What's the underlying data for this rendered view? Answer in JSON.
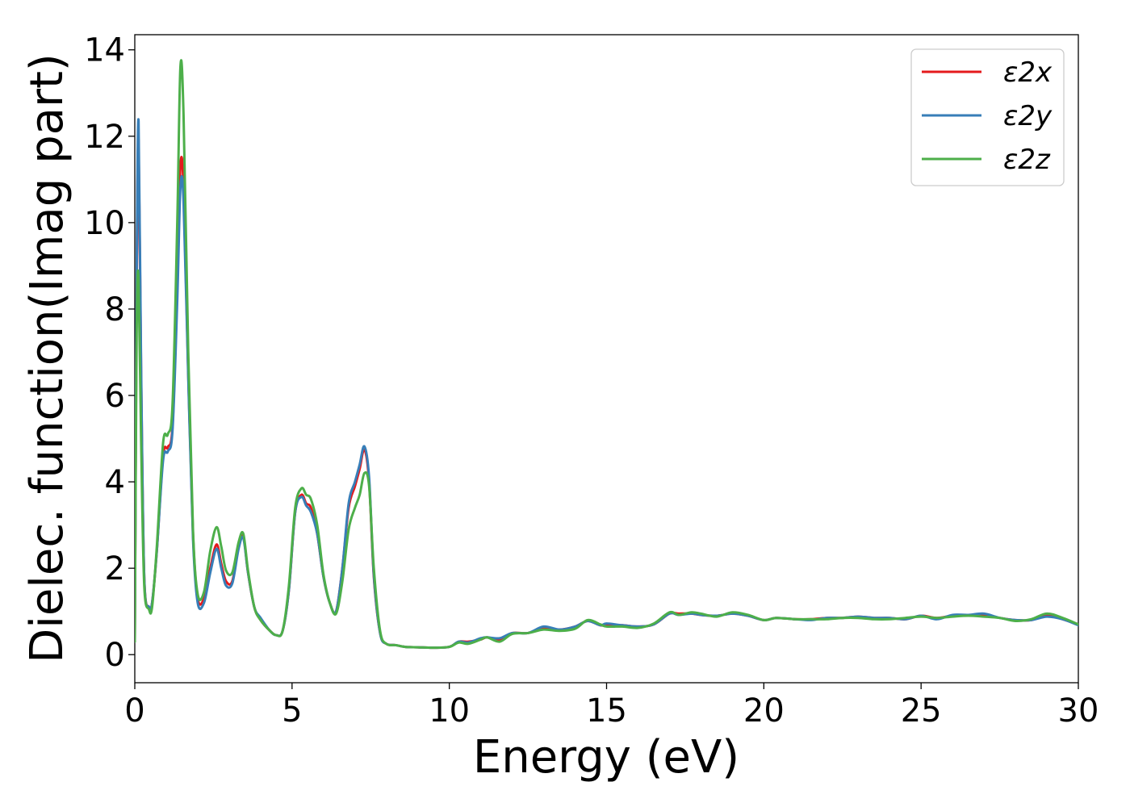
{
  "chart_data": {
    "type": "line",
    "xlabel": "Energy (eV)",
    "ylabel": "Dielec. function(Imag part)",
    "xlim": [
      0,
      30
    ],
    "ylim": [
      -0.65,
      14.35
    ],
    "xticks": [
      0,
      5,
      10,
      15,
      20,
      25,
      30
    ],
    "yticks": [
      0,
      2,
      4,
      6,
      8,
      10,
      12,
      14
    ],
    "xtick_labels": [
      "0",
      "5",
      "10",
      "15",
      "20",
      "25",
      "30"
    ],
    "ytick_labels": [
      "0",
      "2",
      "4",
      "6",
      "8",
      "10",
      "12",
      "14"
    ],
    "grid": false,
    "legend_position": "top-right",
    "series": [
      {
        "name": "ε2x",
        "color": "#e41a1c",
        "x": [
          0,
          0.06,
          0.12,
          0.2,
          0.3,
          0.45,
          0.55,
          0.7,
          0.9,
          1.05,
          1.2,
          1.35,
          1.45,
          1.55,
          1.7,
          1.85,
          2.0,
          2.2,
          2.4,
          2.6,
          2.75,
          2.9,
          3.1,
          3.3,
          3.45,
          3.6,
          3.8,
          4.0,
          4.3,
          4.5,
          4.7,
          4.9,
          5.1,
          5.3,
          5.45,
          5.6,
          5.8,
          6.0,
          6.2,
          6.4,
          6.6,
          6.8,
          7.0,
          7.15,
          7.3,
          7.45,
          7.6,
          7.8,
          8.0,
          8.3,
          8.6,
          9.0,
          9.5,
          10.0,
          10.3,
          10.6,
          11.0,
          11.2,
          11.6,
          12.0,
          12.5,
          13.0,
          13.5,
          14.0,
          14.4,
          14.8,
          15.0,
          15.5,
          16.0,
          16.5,
          17.0,
          17.3,
          17.7,
          18.0,
          18.5,
          19.0,
          19.5,
          20.0,
          20.4,
          21.0,
          21.5,
          22.0,
          22.5,
          23.0,
          23.5,
          24.0,
          24.5,
          25.0,
          25.5,
          26.0,
          26.5,
          27.0,
          27.5,
          28.0,
          28.5,
          29.0,
          29.5,
          30.0
        ],
        "values": [
          0.3,
          8.5,
          11.9,
          6.5,
          1.8,
          1.1,
          1.2,
          2.4,
          4.6,
          4.8,
          5.3,
          8.5,
          11.3,
          10.8,
          6.5,
          2.8,
          1.3,
          1.3,
          2.0,
          2.55,
          2.1,
          1.7,
          1.7,
          2.5,
          2.75,
          1.9,
          1.1,
          0.8,
          0.55,
          0.45,
          0.55,
          1.5,
          3.3,
          3.7,
          3.5,
          3.4,
          2.8,
          1.8,
          1.2,
          1.0,
          2.0,
          3.4,
          3.9,
          4.3,
          4.75,
          4.0,
          1.8,
          0.5,
          0.25,
          0.22,
          0.18,
          0.17,
          0.16,
          0.18,
          0.3,
          0.3,
          0.35,
          0.4,
          0.35,
          0.5,
          0.5,
          0.62,
          0.58,
          0.65,
          0.78,
          0.68,
          0.68,
          0.68,
          0.65,
          0.7,
          0.95,
          0.95,
          0.95,
          0.92,
          0.9,
          0.95,
          0.9,
          0.8,
          0.85,
          0.82,
          0.82,
          0.85,
          0.85,
          0.88,
          0.85,
          0.85,
          0.82,
          0.9,
          0.85,
          0.9,
          0.9,
          0.92,
          0.85,
          0.8,
          0.8,
          0.92,
          0.82,
          0.7
        ]
      },
      {
        "name": "ε2y",
        "color": "#377eb8",
        "x": [
          0,
          0.06,
          0.12,
          0.2,
          0.3,
          0.45,
          0.55,
          0.7,
          0.9,
          1.05,
          1.2,
          1.35,
          1.45,
          1.55,
          1.7,
          1.85,
          2.0,
          2.2,
          2.4,
          2.6,
          2.75,
          2.9,
          3.1,
          3.3,
          3.45,
          3.6,
          3.8,
          4.0,
          4.3,
          4.5,
          4.7,
          4.9,
          5.1,
          5.3,
          5.45,
          5.6,
          5.8,
          6.0,
          6.2,
          6.4,
          6.6,
          6.8,
          7.0,
          7.15,
          7.3,
          7.45,
          7.6,
          7.8,
          8.0,
          8.3,
          8.6,
          9.0,
          9.5,
          10.0,
          10.3,
          10.6,
          11.0,
          11.2,
          11.6,
          12.0,
          12.5,
          13.0,
          13.5,
          14.0,
          14.4,
          14.8,
          15.0,
          15.5,
          16.0,
          16.5,
          17.0,
          17.3,
          17.7,
          18.0,
          18.5,
          19.0,
          19.5,
          20.0,
          20.4,
          21.0,
          21.5,
          22.0,
          22.5,
          23.0,
          23.5,
          24.0,
          24.5,
          25.0,
          25.5,
          26.0,
          26.5,
          27.0,
          27.5,
          28.0,
          28.5,
          29.0,
          29.5,
          30.0
        ],
        "values": [
          0.3,
          8.8,
          12.35,
          6.7,
          1.8,
          1.1,
          1.2,
          2.4,
          4.5,
          4.7,
          5.2,
          8.2,
          10.8,
          10.5,
          6.4,
          2.7,
          1.2,
          1.2,
          1.9,
          2.45,
          2.0,
          1.6,
          1.65,
          2.45,
          2.7,
          1.9,
          1.1,
          0.85,
          0.55,
          0.45,
          0.55,
          1.5,
          3.3,
          3.65,
          3.45,
          3.3,
          2.8,
          1.8,
          1.2,
          1.0,
          2.0,
          3.5,
          4.0,
          4.4,
          4.82,
          4.1,
          1.85,
          0.5,
          0.25,
          0.22,
          0.18,
          0.17,
          0.16,
          0.18,
          0.3,
          0.28,
          0.38,
          0.4,
          0.38,
          0.5,
          0.5,
          0.65,
          0.58,
          0.65,
          0.78,
          0.68,
          0.72,
          0.68,
          0.65,
          0.7,
          0.95,
          0.92,
          0.95,
          0.92,
          0.9,
          0.95,
          0.9,
          0.8,
          0.85,
          0.82,
          0.8,
          0.85,
          0.85,
          0.88,
          0.85,
          0.85,
          0.82,
          0.9,
          0.82,
          0.92,
          0.92,
          0.95,
          0.85,
          0.8,
          0.8,
          0.88,
          0.82,
          0.68
        ]
      },
      {
        "name": "ε2z",
        "color": "#4daf4a",
        "x": [
          0,
          0.06,
          0.12,
          0.2,
          0.3,
          0.45,
          0.55,
          0.7,
          0.9,
          1.05,
          1.2,
          1.35,
          1.45,
          1.55,
          1.7,
          1.85,
          2.0,
          2.2,
          2.4,
          2.6,
          2.75,
          2.9,
          3.1,
          3.3,
          3.45,
          3.6,
          3.8,
          4.0,
          4.3,
          4.5,
          4.7,
          4.9,
          5.1,
          5.3,
          5.45,
          5.6,
          5.8,
          6.0,
          6.2,
          6.4,
          6.6,
          6.8,
          7.0,
          7.15,
          7.3,
          7.45,
          7.6,
          7.8,
          8.0,
          8.3,
          8.6,
          9.0,
          9.5,
          10.0,
          10.3,
          10.6,
          11.0,
          11.2,
          11.6,
          12.0,
          12.5,
          13.0,
          13.5,
          14.0,
          14.4,
          14.8,
          15.0,
          15.5,
          16.0,
          16.5,
          17.0,
          17.3,
          17.7,
          18.0,
          18.5,
          19.0,
          19.5,
          20.0,
          20.4,
          21.0,
          21.5,
          22.0,
          22.5,
          23.0,
          23.5,
          24.0,
          24.5,
          25.0,
          25.5,
          26.0,
          26.5,
          27.0,
          27.5,
          28.0,
          28.5,
          29.0,
          29.5,
          30.0
        ],
        "values": [
          0.3,
          7.5,
          8.7,
          5.0,
          1.6,
          1.05,
          1.1,
          2.5,
          4.9,
          5.1,
          5.8,
          10.0,
          13.6,
          12.5,
          7.0,
          2.9,
          1.4,
          1.45,
          2.4,
          2.95,
          2.5,
          1.95,
          1.9,
          2.6,
          2.8,
          1.95,
          1.1,
          0.8,
          0.55,
          0.45,
          0.55,
          1.6,
          3.4,
          3.85,
          3.7,
          3.6,
          3.0,
          1.85,
          1.2,
          0.95,
          1.7,
          2.9,
          3.4,
          3.7,
          4.2,
          3.9,
          2.0,
          0.55,
          0.25,
          0.22,
          0.18,
          0.17,
          0.16,
          0.18,
          0.28,
          0.25,
          0.35,
          0.4,
          0.3,
          0.48,
          0.5,
          0.58,
          0.55,
          0.6,
          0.8,
          0.7,
          0.65,
          0.65,
          0.62,
          0.72,
          0.98,
          0.92,
          0.98,
          0.95,
          0.88,
          0.98,
          0.92,
          0.8,
          0.85,
          0.82,
          0.82,
          0.82,
          0.85,
          0.85,
          0.82,
          0.82,
          0.85,
          0.88,
          0.85,
          0.88,
          0.9,
          0.88,
          0.85,
          0.78,
          0.82,
          0.95,
          0.85,
          0.7
        ]
      }
    ]
  }
}
